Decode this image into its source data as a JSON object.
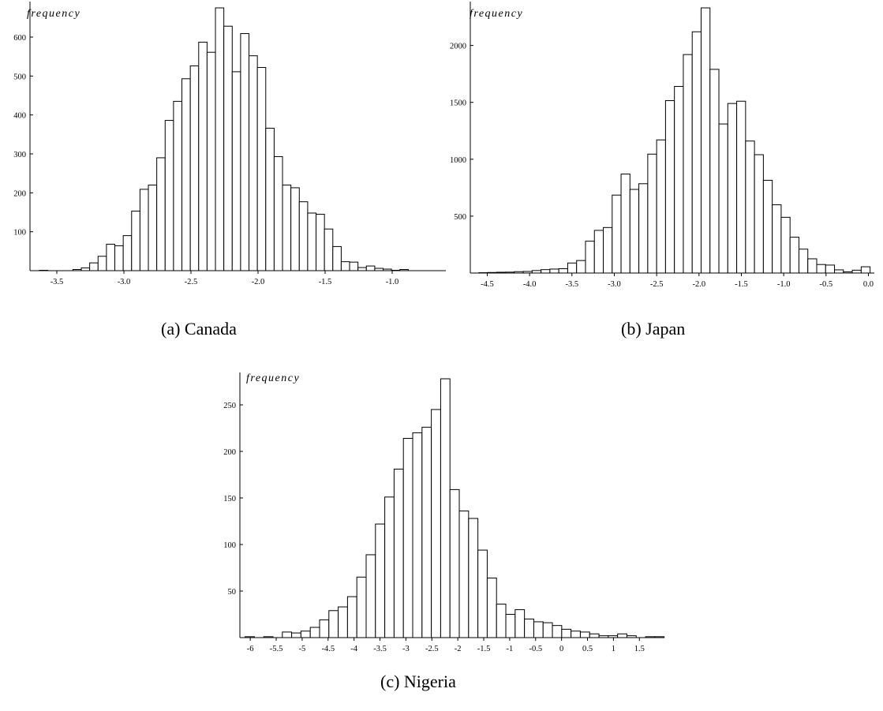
{
  "chart_data": [
    {
      "type": "bar",
      "caption": "(a) Canada",
      "ylabel": "frequency",
      "xlabel": "",
      "bin_start": -3.63,
      "bin_width": 0.0625,
      "values": [
        1,
        0,
        0,
        0,
        3,
        7,
        20,
        37,
        68,
        64,
        90,
        153,
        209,
        220,
        290,
        386,
        435,
        493,
        526,
        587,
        561,
        675,
        628,
        511,
        609,
        552,
        522,
        366,
        293,
        220,
        213,
        177,
        148,
        145,
        107,
        62,
        23,
        22,
        8,
        12,
        6,
        4,
        1,
        3
      ],
      "xlim": [
        -3.7,
        -0.6
      ],
      "ylim": [
        0,
        675
      ],
      "xticks": [
        -3.5,
        -3.0,
        -2.5,
        -2.0,
        -1.5,
        -1.0
      ],
      "xtick_labels": [
        "-3.5",
        "-3.0",
        "-2.5",
        "-2.0",
        "-1.5",
        "-1.0"
      ],
      "yticks": [
        100,
        200,
        300,
        400,
        500,
        600
      ],
      "ytick_labels": [
        "100",
        "200",
        "300",
        "400",
        "500",
        "600"
      ]
    },
    {
      "type": "bar",
      "caption": "(b) Japan",
      "ylabel": "frequency",
      "xlabel": "",
      "bin_start": -4.6,
      "bin_width": 0.105,
      "values": [
        3,
        5,
        7,
        8,
        12,
        14,
        22,
        30,
        35,
        38,
        88,
        110,
        280,
        375,
        400,
        685,
        870,
        735,
        785,
        1045,
        1170,
        1515,
        1640,
        1920,
        2120,
        2330,
        1790,
        1310,
        1490,
        1510,
        1160,
        1040,
        815,
        600,
        490,
        315,
        210,
        125,
        75,
        70,
        28,
        10,
        25,
        55
      ],
      "xlim": [
        -4.7,
        0.07
      ],
      "ylim": [
        0,
        2330
      ],
      "xticks": [
        -4.5,
        -4.0,
        -3.5,
        -3.0,
        -2.5,
        -2.0,
        -1.5,
        -1.0,
        -0.5,
        0.0
      ],
      "xtick_labels": [
        "-4.5",
        "-4.0",
        "-3.5",
        "-3.0",
        "-2.5",
        "-2.0",
        "-1.5",
        "-1.0",
        "-0.5",
        "0.0"
      ],
      "yticks": [
        500,
        1000,
        1500,
        2000
      ],
      "ytick_labels": [
        "500",
        "1000",
        "1500",
        "2000"
      ]
    },
    {
      "type": "bar",
      "caption": "(c) Nigeria",
      "ylabel": "frequency",
      "xlabel": "",
      "bin_start": -6.1,
      "bin_width": 0.1795,
      "values": [
        1,
        0,
        1,
        0,
        6,
        5,
        7,
        11,
        19,
        29,
        33,
        44,
        65,
        89,
        122,
        151,
        181,
        214,
        220,
        226,
        245,
        278,
        159,
        136,
        128,
        94,
        64,
        36,
        25,
        30,
        20,
        17,
        16,
        13,
        9,
        7,
        6,
        4,
        2,
        2,
        4,
        2,
        0,
        1,
        1
      ],
      "xlim": [
        -6.2,
        1.8
      ],
      "ylim": [
        0,
        278
      ],
      "xticks": [
        -6,
        -5.5,
        -5,
        -4.5,
        -4,
        -3.5,
        -3,
        -2.5,
        -2,
        -1.5,
        -1,
        -0.5,
        0,
        0.5,
        1,
        1.5
      ],
      "xtick_labels": [
        "-6",
        "-5.5",
        "-5",
        "-4.5",
        "-4",
        "-3.5",
        "-3",
        "-2.5",
        "-2",
        "-1.5",
        "-1",
        "-0.5",
        "0",
        "0.5",
        "1",
        "1.5"
      ],
      "yticks": [
        50,
        100,
        150,
        200,
        250
      ],
      "ytick_labels": [
        "50",
        "100",
        "150",
        "200",
        "250"
      ]
    }
  ]
}
